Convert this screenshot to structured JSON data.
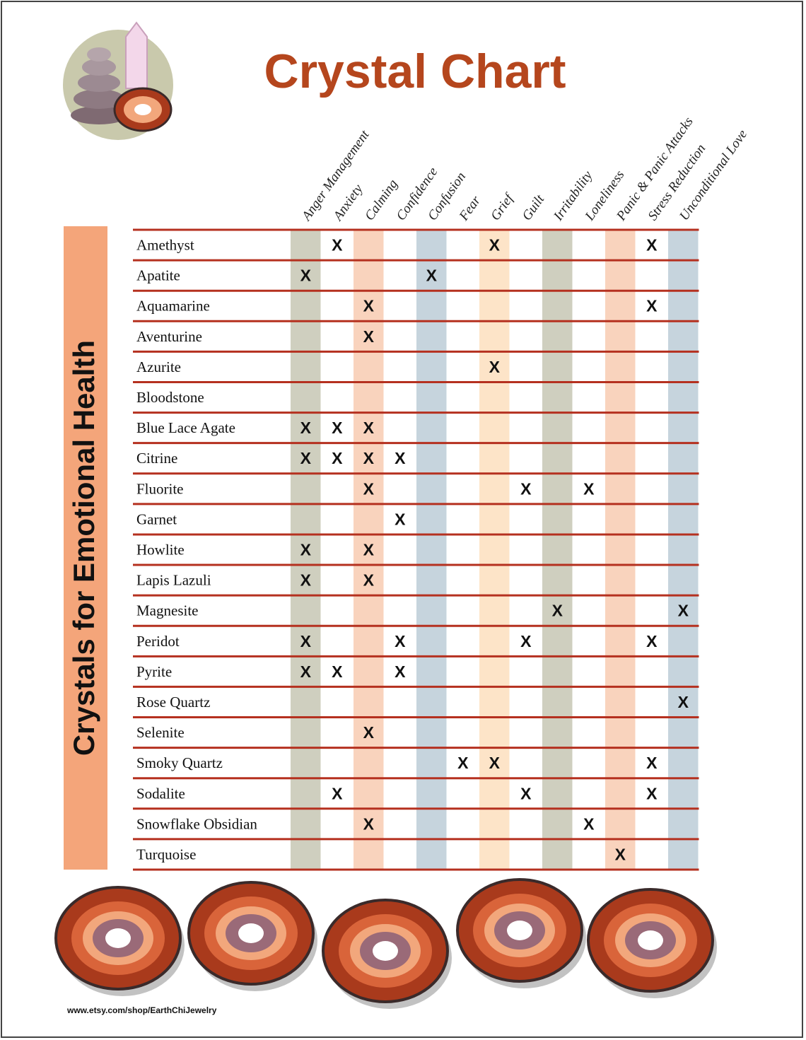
{
  "header": {
    "title": "Crystal Chart",
    "side_label": "Crystals for Emotional Health"
  },
  "table": {
    "columns": [
      "Anger Management",
      "Anxiety",
      "Calming",
      "Confidence",
      "Confusion",
      "Fear",
      "Grief",
      "Guilt",
      "Irritability",
      "Loneliness",
      "Panic & Panic Attacks",
      "Stress Reduction",
      "Unconditional Love"
    ],
    "rows": [
      {
        "name": "Amethyst",
        "cells": [
          null,
          "X",
          null,
          null,
          null,
          null,
          "X",
          null,
          null,
          null,
          null,
          "X",
          null
        ]
      },
      {
        "name": "Apatite",
        "cells": [
          "X",
          null,
          null,
          null,
          "X",
          null,
          null,
          null,
          null,
          null,
          null,
          null,
          null
        ]
      },
      {
        "name": "Aquamarine",
        "cells": [
          null,
          null,
          "X",
          null,
          null,
          null,
          null,
          null,
          null,
          null,
          null,
          "X",
          null
        ]
      },
      {
        "name": "Aventurine",
        "cells": [
          null,
          null,
          "X",
          null,
          null,
          null,
          null,
          null,
          null,
          null,
          null,
          null,
          null
        ]
      },
      {
        "name": "Azurite",
        "cells": [
          null,
          null,
          null,
          null,
          null,
          null,
          "X",
          null,
          null,
          null,
          null,
          null,
          null
        ]
      },
      {
        "name": "Bloodstone",
        "cells": [
          null,
          null,
          null,
          null,
          null,
          null,
          null,
          null,
          null,
          null,
          null,
          null,
          null
        ]
      },
      {
        "name": "Blue Lace Agate",
        "cells": [
          "X",
          "X",
          "X",
          null,
          null,
          null,
          null,
          null,
          null,
          null,
          null,
          null,
          null
        ]
      },
      {
        "name": "Citrine",
        "cells": [
          "X",
          "X",
          "X",
          "X",
          null,
          null,
          null,
          null,
          null,
          null,
          null,
          null,
          null
        ]
      },
      {
        "name": "Fluorite",
        "cells": [
          null,
          null,
          "X",
          null,
          null,
          null,
          null,
          "X",
          null,
          "X",
          null,
          null,
          null
        ]
      },
      {
        "name": "Garnet",
        "cells": [
          null,
          null,
          null,
          "X",
          null,
          null,
          null,
          null,
          null,
          null,
          null,
          null,
          null
        ]
      },
      {
        "name": "Howlite",
        "cells": [
          "X",
          null,
          "X",
          null,
          null,
          null,
          null,
          null,
          null,
          null,
          null,
          null,
          null
        ]
      },
      {
        "name": "Lapis Lazuli",
        "cells": [
          "X",
          null,
          "X",
          null,
          null,
          null,
          null,
          null,
          null,
          null,
          null,
          null,
          null
        ]
      },
      {
        "name": "Magnesite",
        "cells": [
          null,
          null,
          null,
          null,
          null,
          null,
          null,
          null,
          "X",
          null,
          null,
          null,
          "X"
        ]
      },
      {
        "name": "Peridot",
        "cells": [
          "X",
          null,
          null,
          "X",
          null,
          null,
          null,
          "X",
          null,
          null,
          null,
          "X",
          null
        ]
      },
      {
        "name": "Pyrite",
        "cells": [
          "X",
          "X",
          null,
          "X",
          null,
          null,
          null,
          null,
          null,
          null,
          null,
          null,
          null
        ]
      },
      {
        "name": "Rose Quartz",
        "cells": [
          null,
          null,
          null,
          null,
          null,
          null,
          null,
          null,
          null,
          null,
          null,
          null,
          "X"
        ]
      },
      {
        "name": "Selenite",
        "cells": [
          null,
          null,
          "X",
          null,
          null,
          null,
          null,
          null,
          null,
          null,
          null,
          null,
          null
        ]
      },
      {
        "name": "Smoky Quartz",
        "cells": [
          null,
          null,
          null,
          null,
          null,
          "X",
          "X",
          null,
          null,
          null,
          null,
          "X",
          null
        ]
      },
      {
        "name": "Sodalite",
        "cells": [
          null,
          "X",
          null,
          null,
          null,
          null,
          null,
          "X",
          null,
          null,
          null,
          "X",
          null
        ]
      },
      {
        "name": "Snowflake Obsidian",
        "cells": [
          null,
          null,
          "X",
          null,
          null,
          null,
          null,
          null,
          null,
          "X",
          null,
          null,
          null
        ]
      },
      {
        "name": "Turquoise",
        "cells": [
          null,
          null,
          null,
          null,
          null,
          null,
          null,
          null,
          null,
          null,
          "X",
          null,
          null
        ]
      }
    ]
  },
  "footer": {
    "url": "www.etsy.com/shop/EarthChiJewelry"
  }
}
